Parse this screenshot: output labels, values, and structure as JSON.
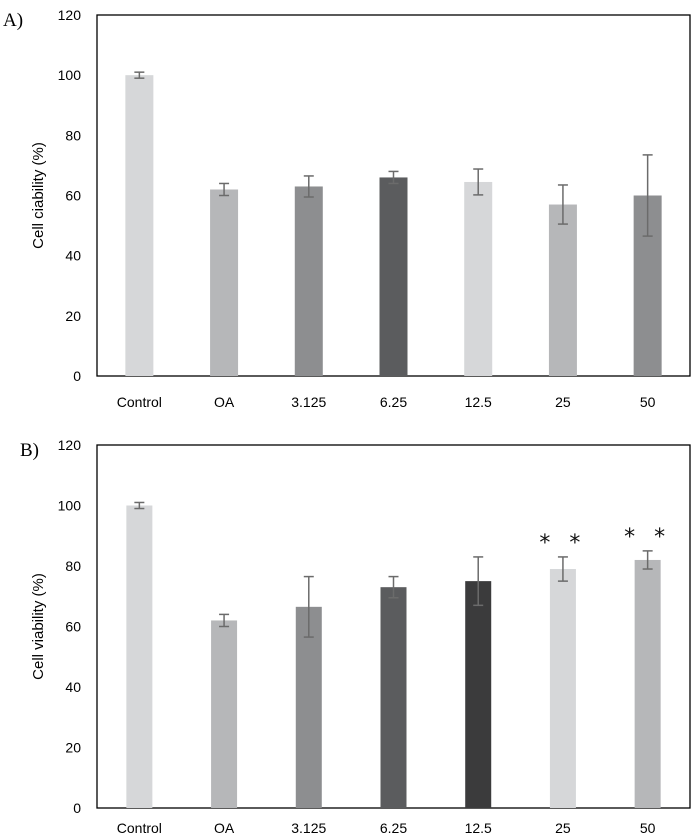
{
  "chart_data": [
    {
      "type": "bar",
      "panel_label": "A)",
      "title": "",
      "xlabel": "",
      "ylabel": "Cell ciability (%)",
      "ylim": [
        0,
        120
      ],
      "yticks": [
        "0",
        "20",
        "40",
        "60",
        "80",
        "100",
        "120"
      ],
      "categories": [
        "Control",
        "OA",
        "3.125",
        "6.25",
        "12.5",
        "25",
        "50"
      ],
      "values": [
        100,
        62,
        63,
        66,
        64.5,
        57,
        60
      ],
      "errors": [
        1,
        2,
        3.5,
        2,
        4.3,
        6.5,
        13.5
      ],
      "colors": [
        "#d6d7d9",
        "#b6b7b9",
        "#8d8e90",
        "#5b5c5e",
        "#d6d7d9",
        "#b6b7b9",
        "#8d8e90"
      ],
      "annotations": [
        "",
        "",
        "",
        "",
        "",
        "",
        ""
      ]
    },
    {
      "type": "bar",
      "panel_label": "B)",
      "title": "",
      "xlabel": "",
      "ylabel": "Cell viability (%)",
      "ylim": [
        0,
        120
      ],
      "yticks": [
        "0",
        "20",
        "40",
        "60",
        "80",
        "100",
        "120"
      ],
      "categories": [
        "Control",
        "OA",
        "3.125",
        "6.25",
        "12.5",
        "25",
        "50"
      ],
      "values": [
        100,
        62,
        66.5,
        73,
        75,
        79,
        82
      ],
      "errors": [
        1,
        2,
        10,
        3.5,
        8,
        4,
        3
      ],
      "colors": [
        "#d6d7d9",
        "#b6b7b9",
        "#8d8e90",
        "#5b5c5e",
        "#3b3b3c",
        "#d6d7d9",
        "#b6b7b9"
      ],
      "annotations": [
        "",
        "",
        "",
        "",
        "",
        "**",
        "**"
      ]
    }
  ]
}
